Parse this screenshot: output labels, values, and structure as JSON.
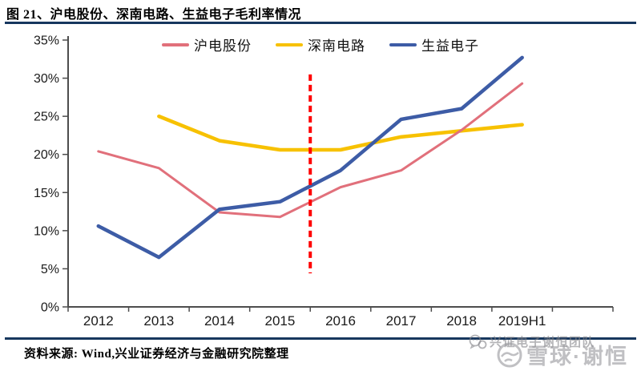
{
  "header": {
    "figure_title": "图 21、沪电股份、深南电路、生益电子毛利率情况"
  },
  "legend": {
    "items": [
      {
        "label": "沪电股份",
        "color": "#E1707B"
      },
      {
        "label": "深南电路",
        "color": "#F7C100"
      },
      {
        "label": "生益电子",
        "color": "#3D5CA6"
      }
    ]
  },
  "chart_data": {
    "type": "line",
    "title": "沪电股份、深南电路、生益电子毛利率情况",
    "categories": [
      "2012",
      "2013",
      "2014",
      "2015",
      "2016",
      "2017",
      "2018",
      "2019H1"
    ],
    "series": [
      {
        "name": "沪电股份",
        "color": "#E1707B",
        "stroke_width": 3,
        "values": [
          20.4,
          18.2,
          12.4,
          11.8,
          15.7,
          17.9,
          23.2,
          29.3
        ]
      },
      {
        "name": "深南电路",
        "color": "#F7C100",
        "stroke_width": 4.5,
        "values": [
          null,
          25.0,
          21.8,
          20.6,
          20.6,
          22.3,
          23.1,
          23.9
        ]
      },
      {
        "name": "生益电子",
        "color": "#3D5CA6",
        "stroke_width": 4.5,
        "values": [
          10.6,
          6.5,
          12.8,
          13.8,
          17.9,
          24.6,
          26.0,
          32.7
        ]
      }
    ],
    "ylabel": "",
    "xlabel": "",
    "ylim": [
      0,
      35
    ],
    "y_tick_step": 5,
    "y_tick_labels": [
      "0%",
      "5%",
      "10%",
      "15%",
      "20%",
      "25%",
      "30%",
      "35%"
    ],
    "grid": false,
    "legend_position": "top-center",
    "annotation_line": {
      "type": "vertical-dashed",
      "x_between": [
        "2015",
        "2016"
      ],
      "color": "#FF0000",
      "y_span_pct": [
        4.4,
        30.5
      ]
    }
  },
  "footer": {
    "source_text": "资料来源: Wind,兴业证券经济与金融研究院整理"
  },
  "watermarks": {
    "wechat_text": "兴证电子谢恒团队",
    "xueqiu_text": "雪球·谢恒"
  },
  "colors": {
    "rule_navy": "#17375E",
    "axis": "#4D4D4D",
    "tick_text": "#1A1A1A",
    "watermark_gray": "#9B9B9B"
  }
}
